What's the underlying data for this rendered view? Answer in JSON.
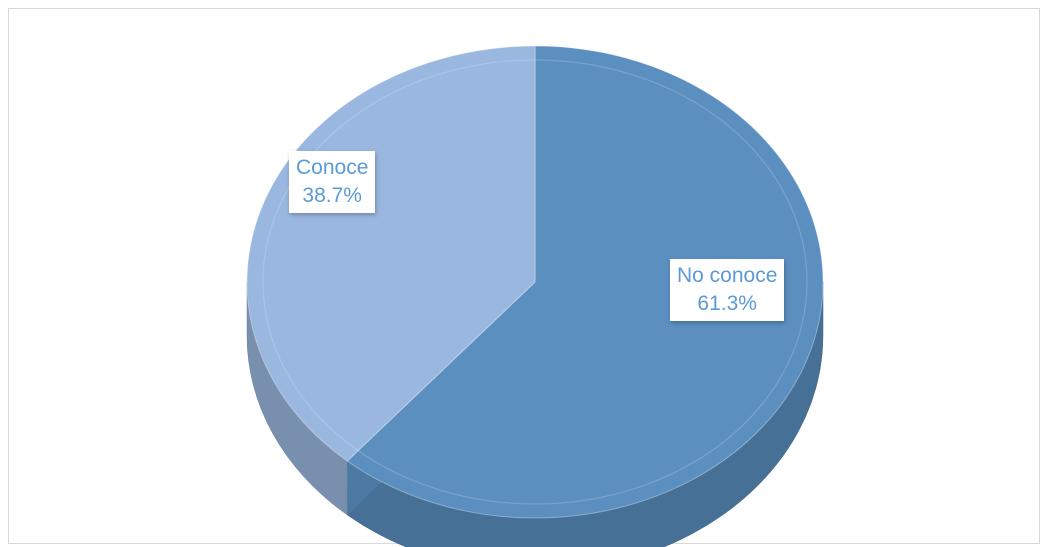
{
  "chart_data": {
    "type": "pie",
    "style": "3d",
    "categories": [
      "No conoce",
      "Conoce"
    ],
    "values": [
      61.3,
      38.7
    ],
    "value_labels": [
      "61.3%",
      "38.7%"
    ],
    "colors": [
      "#5b8fc0",
      "#9ab7df"
    ],
    "title": "",
    "legend": "none"
  }
}
